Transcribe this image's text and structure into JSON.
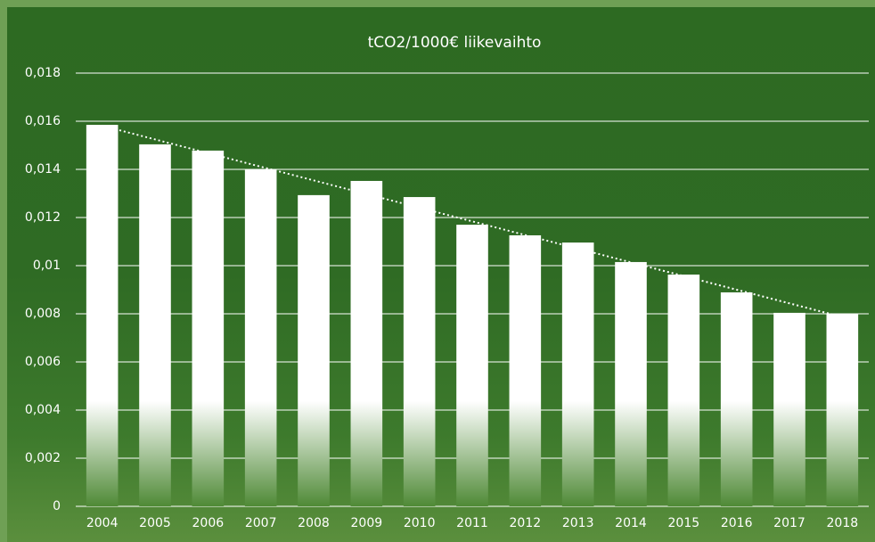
{
  "chart_data": {
    "type": "bar",
    "title": "tCO2/1000€ liikevaihto",
    "categories": [
      "2004",
      "2005",
      "2006",
      "2007",
      "2008",
      "2009",
      "2010",
      "2011",
      "2012",
      "2013",
      "2014",
      "2015",
      "2016",
      "2017",
      "2018"
    ],
    "values": [
      0.01585,
      0.01504,
      0.01478,
      0.014,
      0.01293,
      0.01352,
      0.01285,
      0.0117,
      0.01126,
      0.01096,
      0.01015,
      0.00963,
      0.00889,
      0.00804,
      0.008
    ],
    "color": "#ffffff",
    "ylim": [
      0,
      0.018
    ],
    "yticks": [
      0,
      {
        "value": 0.002,
        "label": "0,002"
      },
      {
        "value": 0.004,
        "label": "0,004"
      },
      {
        "value": 0.006,
        "label": "0,006"
      },
      {
        "value": 0.008,
        "label": "0,008"
      },
      {
        "value": 0.01,
        "label": "0,01"
      },
      {
        "value": 0.012,
        "label": "0,012"
      },
      {
        "value": 0.014,
        "label": "0,014"
      },
      {
        "value": 0.016,
        "label": "0,016"
      },
      {
        "value": 0.018,
        "label": "0,018"
      }
    ],
    "grid": true,
    "trendline": true
  }
}
